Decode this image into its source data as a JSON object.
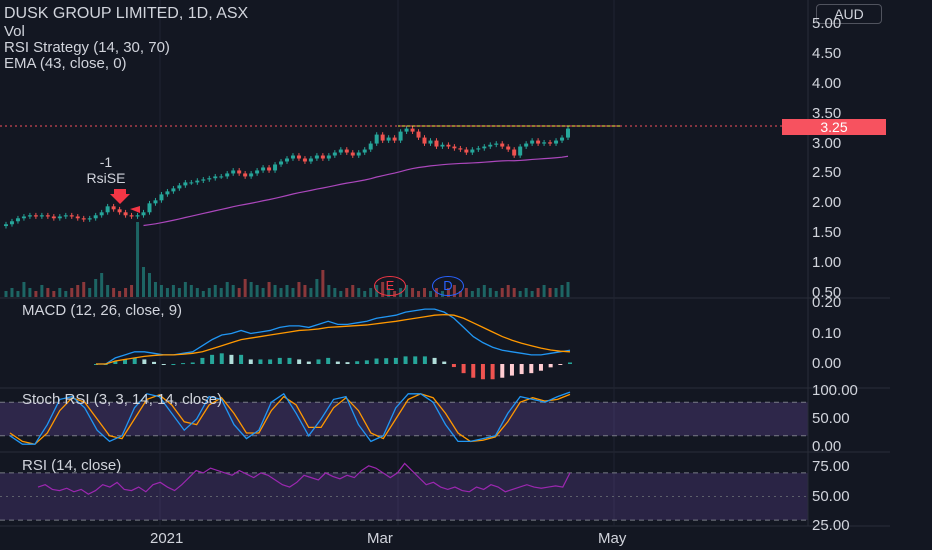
{
  "header": {
    "title": "DUSK GROUP LIMITED, 1D, ASX",
    "vol_label": "Vol",
    "strategy_label": "RSI Strategy (14, 30, 70)",
    "ema_label": "EMA (43, close, 0)",
    "currency": "AUD"
  },
  "price_badge": "3.25",
  "signal": {
    "value": "-1",
    "name": "RsiSE"
  },
  "events": {
    "earnings": "E",
    "dividend": "D"
  },
  "panes": {
    "macd_label": "MACD (12, 26, close, 9)",
    "stoch_label": "Stoch RSI (3, 3, 14, 14, close)",
    "rsi_label": "RSI (14, close)"
  },
  "x_axis_labels": [
    "2021",
    "Mar",
    "May"
  ],
  "colors": {
    "background": "#131722",
    "up": "#26a69a",
    "down": "#ef5350",
    "ema": "#ab47bc",
    "macd": "#2196f3",
    "signal": "#ff9800",
    "stoch_k": "#2196f3",
    "stoch_d": "#ff9800",
    "rsi": "#9c27b0",
    "band": "#7e57c2",
    "price_line": "#f7525f",
    "hline": "#ffeb3b"
  },
  "chart_data": [
    {
      "type": "candlestick",
      "y_ticks": [
        "5.00",
        "4.50",
        "4.00",
        "3.50",
        "3.25",
        "3.00",
        "2.50",
        "2.00",
        "1.50",
        "1.00",
        "0.50"
      ],
      "ylim": [
        0.5,
        5.0
      ],
      "last_close": 3.25,
      "ema_period": 43,
      "close_series": [
        1.65,
        1.7,
        1.75,
        1.78,
        1.8,
        1.78,
        1.8,
        1.78,
        1.75,
        1.78,
        1.8,
        1.78,
        1.75,
        1.73,
        1.75,
        1.8,
        1.85,
        1.95,
        1.9,
        1.85,
        1.8,
        1.78,
        1.8,
        1.85,
        2.0,
        2.05,
        2.15,
        2.2,
        2.25,
        2.3,
        2.35,
        2.35,
        2.38,
        2.4,
        2.42,
        2.45,
        2.45,
        2.5,
        2.55,
        2.5,
        2.45,
        2.5,
        2.55,
        2.6,
        2.55,
        2.65,
        2.7,
        2.75,
        2.8,
        2.75,
        2.7,
        2.75,
        2.8,
        2.75,
        2.8,
        2.85,
        2.9,
        2.85,
        2.8,
        2.85,
        2.9,
        3.0,
        3.15,
        3.05,
        3.1,
        3.05,
        3.2,
        3.25,
        3.2,
        3.1,
        3.0,
        3.05,
        2.95,
        2.98,
        2.95,
        2.92,
        2.9,
        2.85,
        2.9,
        2.92,
        2.95,
        2.98,
        3.0,
        2.95,
        2.9,
        2.8,
        2.95,
        3.0,
        3.05,
        3.0,
        3.02,
        3.0,
        3.05,
        3.1,
        3.25
      ],
      "volume": [
        2,
        3,
        2,
        5,
        3,
        2,
        4,
        3,
        2,
        3,
        2,
        3,
        4,
        5,
        3,
        6,
        8,
        4,
        3,
        2,
        3,
        4,
        25,
        10,
        8,
        5,
        4,
        3,
        4,
        3,
        5,
        4,
        3,
        2,
        3,
        4,
        3,
        5,
        4,
        3,
        6,
        5,
        4,
        3,
        5,
        4,
        3,
        4,
        3,
        5,
        4,
        3,
        6,
        9,
        4,
        3,
        2,
        3,
        4,
        3,
        2,
        3,
        4,
        5,
        3,
        2,
        3,
        4,
        3,
        2,
        3,
        2,
        3,
        2,
        3,
        4,
        2,
        3,
        2,
        3,
        4,
        3,
        2,
        3,
        4,
        3,
        2,
        3,
        2,
        3,
        4,
        3,
        3,
        4,
        5
      ]
    },
    {
      "type": "line",
      "name": "MACD",
      "y_ticks": [
        "0.20",
        "0.10",
        "0.00"
      ],
      "ylim": [
        -0.02,
        0.21
      ],
      "macd": [
        0.0,
        0.0,
        0.02,
        0.03,
        0.04,
        0.04,
        0.035,
        0.03,
        0.03,
        0.035,
        0.04,
        0.06,
        0.08,
        0.095,
        0.1,
        0.11,
        0.1,
        0.105,
        0.11,
        0.12,
        0.125,
        0.125,
        0.12,
        0.13,
        0.14,
        0.13,
        0.13,
        0.135,
        0.14,
        0.15,
        0.155,
        0.16,
        0.17,
        0.175,
        0.18,
        0.18,
        0.17,
        0.15,
        0.12,
        0.09,
        0.07,
        0.055,
        0.045,
        0.04,
        0.035,
        0.03,
        0.03,
        0.035,
        0.04,
        0.045
      ],
      "signal": [
        0.0,
        0.0,
        0.01,
        0.015,
        0.02,
        0.025,
        0.028,
        0.03,
        0.03,
        0.032,
        0.035,
        0.04,
        0.05,
        0.06,
        0.07,
        0.08,
        0.085,
        0.09,
        0.095,
        0.1,
        0.105,
        0.11,
        0.112,
        0.115,
        0.12,
        0.122,
        0.124,
        0.126,
        0.128,
        0.132,
        0.136,
        0.14,
        0.145,
        0.15,
        0.155,
        0.16,
        0.162,
        0.16,
        0.15,
        0.135,
        0.12,
        0.105,
        0.09,
        0.078,
        0.068,
        0.06,
        0.052,
        0.046,
        0.042,
        0.04
      ],
      "histogram": [
        0.0,
        0.0,
        0.01,
        0.015,
        0.02,
        0.015,
        0.007,
        0.0,
        0.0,
        0.003,
        0.005,
        0.02,
        0.03,
        0.035,
        0.03,
        0.03,
        0.015,
        0.015,
        0.015,
        0.02,
        0.02,
        0.015,
        0.008,
        0.015,
        0.02,
        0.008,
        0.006,
        0.009,
        0.012,
        0.018,
        0.019,
        0.02,
        0.025,
        0.025,
        0.025,
        0.02,
        0.008,
        -0.01,
        -0.03,
        -0.045,
        -0.05,
        -0.05,
        -0.045,
        -0.038,
        -0.033,
        -0.03,
        -0.022,
        -0.011,
        -0.002,
        0.005
      ]
    },
    {
      "type": "line",
      "name": "Stoch RSI",
      "y_ticks": [
        "100.00",
        "50.00",
        "0.00"
      ],
      "ylim": [
        0,
        100
      ],
      "bands": [
        80,
        20
      ],
      "k": [
        20,
        5,
        5,
        40,
        85,
        90,
        70,
        30,
        10,
        20,
        70,
        95,
        90,
        60,
        30,
        50,
        90,
        85,
        40,
        15,
        30,
        80,
        95,
        60,
        20,
        50,
        85,
        90,
        40,
        10,
        20,
        70,
        95,
        95,
        80,
        40,
        10,
        10,
        15,
        20,
        60,
        90,
        85,
        80,
        90,
        98
      ],
      "d": [
        25,
        10,
        5,
        25,
        65,
        88,
        80,
        50,
        20,
        15,
        50,
        85,
        93,
        75,
        45,
        40,
        75,
        88,
        60,
        25,
        25,
        65,
        90,
        75,
        35,
        35,
        70,
        88,
        65,
        25,
        15,
        50,
        85,
        95,
        88,
        60,
        25,
        10,
        12,
        18,
        45,
        80,
        88,
        82,
        85,
        94
      ]
    },
    {
      "type": "line",
      "name": "RSI",
      "y_ticks": [
        "75.00",
        "50.00",
        "25.00"
      ],
      "ylim": [
        22,
        80
      ],
      "bands": [
        70,
        30
      ],
      "values": [
        58,
        60,
        56,
        55,
        57,
        54,
        56,
        52,
        55,
        60,
        58,
        62,
        56,
        55,
        58,
        54,
        60,
        62,
        58,
        55,
        60,
        66,
        72,
        70,
        74,
        72,
        70,
        68,
        72,
        69,
        66,
        70,
        68,
        64,
        60,
        58,
        62,
        68,
        66,
        64,
        70,
        67,
        65,
        68,
        66,
        72,
        76,
        74,
        70,
        66,
        70,
        78,
        72,
        66,
        60,
        62,
        58,
        56,
        58,
        55,
        54,
        58,
        56,
        60,
        58,
        54,
        56,
        58,
        60,
        58,
        57,
        58,
        59,
        58,
        70
      ]
    }
  ]
}
